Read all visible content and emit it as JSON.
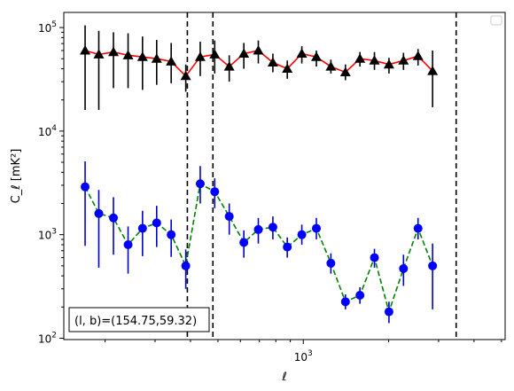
{
  "chart_data": {
    "type": "line",
    "xlabel": "ℓ",
    "ylabel": "C_ℓ [mK²]",
    "xscale": "log",
    "yscale": "log",
    "xlim": [
      143,
      5150
    ],
    "ylim": [
      97,
      140000
    ],
    "x_tick_labels": [
      {
        "value": 1000,
        "mantissa": "10",
        "exp": "3"
      }
    ],
    "y_tick_labels": [
      {
        "value": 100,
        "mantissa": "10",
        "exp": "2"
      },
      {
        "value": 1000,
        "mantissa": "10",
        "exp": "3"
      },
      {
        "value": 10000,
        "mantissa": "10",
        "exp": "4"
      },
      {
        "value": 100000,
        "mantissa": "10",
        "exp": "5"
      }
    ],
    "vlines": [
      390,
      480,
      3460
    ],
    "annotation": "(l, b)=(154.75,59.32)",
    "legend": "upper right (empty)",
    "series": [
      {
        "color": "#ff0000",
        "line_style": "solid",
        "marker": "triangle",
        "marker_color": "#000000",
        "errorbar_color": "#000000",
        "points": [
          {
            "x": 170,
            "y": 60000,
            "lo": 16000,
            "hi": 105000
          },
          {
            "x": 190,
            "y": 55000,
            "lo": 16000,
            "hi": 93000
          },
          {
            "x": 214,
            "y": 58000,
            "lo": 26000,
            "hi": 90000
          },
          {
            "x": 241,
            "y": 54000,
            "lo": 26000,
            "hi": 88000
          },
          {
            "x": 271,
            "y": 52000,
            "lo": 25000,
            "hi": 82000
          },
          {
            "x": 304,
            "y": 50000,
            "lo": 28000,
            "hi": 76000
          },
          {
            "x": 342,
            "y": 47000,
            "lo": 29000,
            "hi": 71000
          },
          {
            "x": 385,
            "y": 34000,
            "lo": 24000,
            "hi": 44000
          },
          {
            "x": 433,
            "y": 52000,
            "lo": 34000,
            "hi": 73000
          },
          {
            "x": 487,
            "y": 55000,
            "lo": 36000,
            "hi": 75000
          },
          {
            "x": 548,
            "y": 42000,
            "lo": 30000,
            "hi": 54000
          },
          {
            "x": 617,
            "y": 56000,
            "lo": 40000,
            "hi": 71000
          },
          {
            "x": 694,
            "y": 60000,
            "lo": 45000,
            "hi": 75000
          },
          {
            "x": 781,
            "y": 46000,
            "lo": 37000,
            "hi": 56000
          },
          {
            "x": 878,
            "y": 40000,
            "lo": 32000,
            "hi": 48000
          },
          {
            "x": 988,
            "y": 56000,
            "lo": 45000,
            "hi": 66000
          },
          {
            "x": 1112,
            "y": 52000,
            "lo": 42000,
            "hi": 60000
          },
          {
            "x": 1251,
            "y": 42000,
            "lo": 36000,
            "hi": 49000
          },
          {
            "x": 1408,
            "y": 37000,
            "lo": 31000,
            "hi": 44000
          },
          {
            "x": 1584,
            "y": 50000,
            "lo": 42000,
            "hi": 58000
          },
          {
            "x": 1782,
            "y": 48000,
            "lo": 39000,
            "hi": 58000
          },
          {
            "x": 2005,
            "y": 44000,
            "lo": 36000,
            "hi": 51000
          },
          {
            "x": 2256,
            "y": 48000,
            "lo": 39000,
            "hi": 57000
          },
          {
            "x": 2539,
            "y": 53000,
            "lo": 43000,
            "hi": 62000
          },
          {
            "x": 2857,
            "y": 38000,
            "lo": 17000,
            "hi": 60000
          }
        ]
      },
      {
        "color": "#008000",
        "line_style": "dashed",
        "marker": "circle",
        "marker_color": "#0000ff",
        "errorbar_color": "#0000cc",
        "points": [
          {
            "x": 170,
            "y": 2900,
            "lo": 780,
            "hi": 5100
          },
          {
            "x": 190,
            "y": 1600,
            "lo": 480,
            "hi": 2700
          },
          {
            "x": 214,
            "y": 1450,
            "lo": 640,
            "hi": 2300
          },
          {
            "x": 241,
            "y": 800,
            "lo": 420,
            "hi": 1200
          },
          {
            "x": 271,
            "y": 1150,
            "lo": 620,
            "hi": 1700
          },
          {
            "x": 304,
            "y": 1300,
            "lo": 760,
            "hi": 1900
          },
          {
            "x": 342,
            "y": 1000,
            "lo": 610,
            "hi": 1400
          },
          {
            "x": 385,
            "y": 500,
            "lo": 300,
            "hi": 720
          },
          {
            "x": 433,
            "y": 3100,
            "lo": 2000,
            "hi": 4600
          },
          {
            "x": 487,
            "y": 2600,
            "lo": 1800,
            "hi": 3500
          },
          {
            "x": 548,
            "y": 1500,
            "lo": 1000,
            "hi": 2000
          },
          {
            "x": 617,
            "y": 840,
            "lo": 600,
            "hi": 1100
          },
          {
            "x": 694,
            "y": 1120,
            "lo": 820,
            "hi": 1450
          },
          {
            "x": 781,
            "y": 1180,
            "lo": 900,
            "hi": 1500
          },
          {
            "x": 878,
            "y": 760,
            "lo": 600,
            "hi": 940
          },
          {
            "x": 988,
            "y": 1000,
            "lo": 800,
            "hi": 1250
          },
          {
            "x": 1112,
            "y": 1150,
            "lo": 900,
            "hi": 1450
          },
          {
            "x": 1251,
            "y": 530,
            "lo": 420,
            "hi": 660
          },
          {
            "x": 1408,
            "y": 225,
            "lo": 190,
            "hi": 265
          },
          {
            "x": 1584,
            "y": 260,
            "lo": 215,
            "hi": 310
          },
          {
            "x": 1782,
            "y": 600,
            "lo": 480,
            "hi": 730
          },
          {
            "x": 2005,
            "y": 180,
            "lo": 140,
            "hi": 225
          },
          {
            "x": 2256,
            "y": 470,
            "lo": 320,
            "hi": 640
          },
          {
            "x": 2539,
            "y": 1150,
            "lo": 900,
            "hi": 1450
          },
          {
            "x": 2857,
            "y": 500,
            "lo": 190,
            "hi": 820
          }
        ]
      }
    ]
  }
}
